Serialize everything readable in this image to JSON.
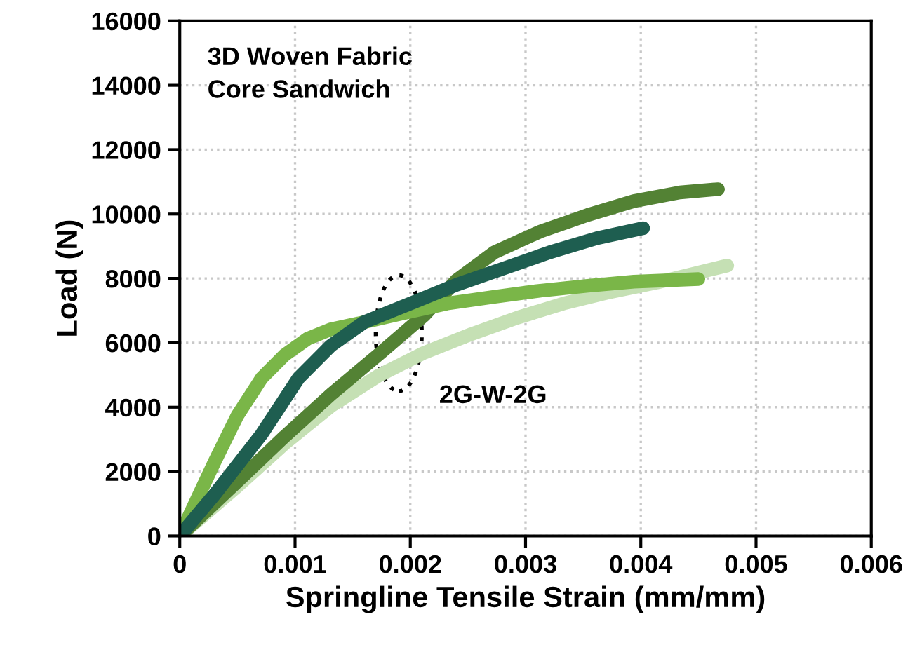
{
  "chart_data": {
    "type": "line",
    "xlabel": "Springline Tensile Strain (mm/mm)",
    "ylabel": "Load (N)",
    "xlim": [
      0,
      0.006
    ],
    "xticks": [
      0,
      0.001,
      0.002,
      0.003,
      0.004,
      0.005,
      0.006
    ],
    "ylim": [
      0,
      16000
    ],
    "yticks": [
      0,
      2000,
      4000,
      6000,
      8000,
      10000,
      12000,
      14000,
      16000
    ],
    "grid": true,
    "line_style": "solid",
    "marker": "none",
    "annotations": [
      "3D Woven Fabric\nCore Sandwich",
      {
        "text": "2G-W-2G",
        "x": 0.0019,
        "y": 6300
      }
    ],
    "series": [
      {
        "color": "#c5e0b4",
        "x": [
          0,
          0.000505,
          0.00091,
          0.00131,
          0.00172,
          0.00212,
          0.00253,
          0.00293,
          0.00333,
          0.00374,
          0.00414,
          0.00475
        ],
        "values": [
          0,
          1560,
          2870,
          4030,
          4970,
          5690,
          6270,
          6780,
          7220,
          7580,
          7870,
          8400
        ]
      },
      {
        "color": "#538234",
        "x": [
          0,
          0.000505,
          0.00091,
          0.00131,
          0.00172,
          0.00212,
          0.0024,
          0.00273,
          0.00313,
          0.00354,
          0.00394,
          0.00434,
          0.00467
        ],
        "values": [
          0,
          1710,
          3090,
          4390,
          5620,
          6850,
          7940,
          8810,
          9460,
          9970,
          10400,
          10670,
          10770
        ]
      },
      {
        "color": "#7ab648",
        "x": [
          0,
          0.0003,
          0.0005,
          0.00071,
          0.00091,
          0.00111,
          0.00131,
          0.0016,
          0.00192,
          0.00232,
          0.00273,
          0.00313,
          0.00354,
          0.00394,
          0.0045
        ],
        "values": [
          0,
          2290,
          3740,
          4900,
          5620,
          6130,
          6420,
          6640,
          6900,
          7220,
          7430,
          7620,
          7770,
          7900,
          7980
        ]
      },
      {
        "color": "#1e5e50",
        "x": [
          0,
          0.0003,
          0.00071,
          0.00103,
          0.00131,
          0.0016,
          0.002,
          0.0024,
          0.00281,
          0.00321,
          0.00362,
          0.00402
        ],
        "values": [
          0,
          1280,
          3160,
          4900,
          5910,
          6640,
          7220,
          7800,
          8310,
          8810,
          9250,
          9560
        ]
      }
    ]
  }
}
